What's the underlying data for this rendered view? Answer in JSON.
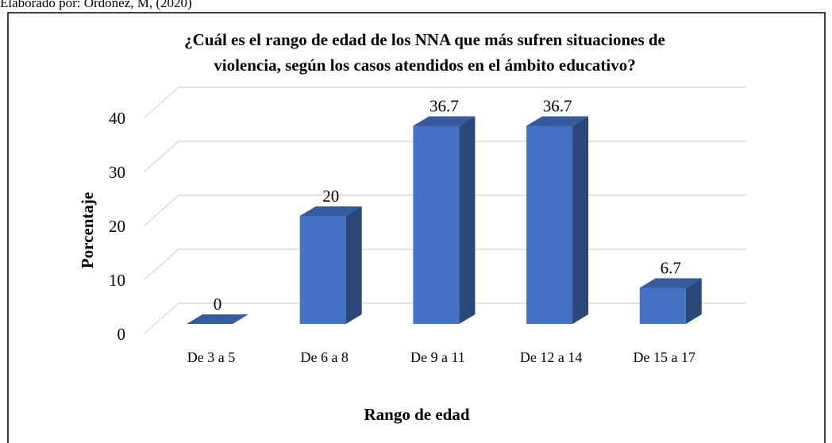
{
  "chart_data": {
    "type": "bar3d",
    "source": "Elaborado por: Ordoñez, M, (2020)",
    "title": [
      "¿Cuál es el rango de edad de los NNA que más sufren situaciones de",
      "violencia, según los casos atendidos en el ámbito educativo?"
    ],
    "x_label": "Rango de edad",
    "y_label": "Porcentaje",
    "categories": [
      "De 3 a 5",
      "De 6 a 8",
      "De 9 a 11",
      "De 12 a 14",
      "De 15 a 17"
    ],
    "values": [
      0,
      20,
      36.7,
      36.7,
      6.7
    ],
    "color": "#4472c4",
    "ylim": [
      0,
      40
    ],
    "yticks": [
      0,
      10,
      20,
      30,
      40
    ],
    "grid": true
  }
}
